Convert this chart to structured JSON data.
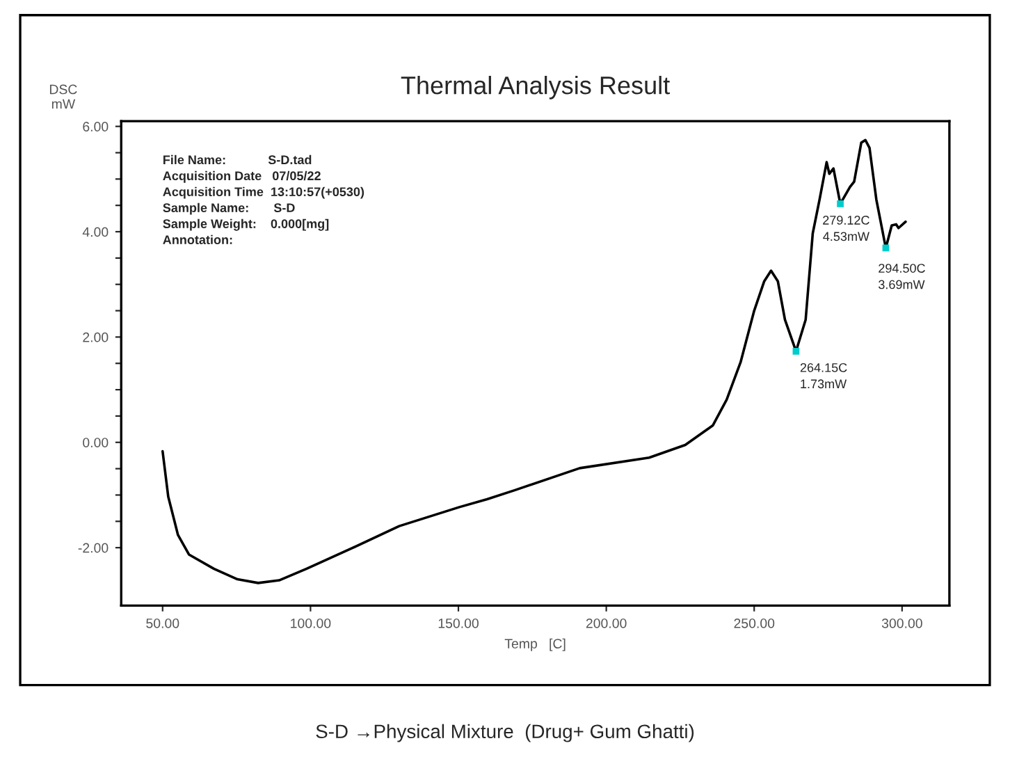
{
  "chart_data": {
    "type": "line",
    "title": "Thermal Analysis Result",
    "xlabel": "Temp   [C]",
    "ylabel": "DSC\nmW",
    "x": [
      50,
      51.9,
      55.2,
      58.9,
      67.3,
      75.3,
      82.3,
      89.4,
      98.7,
      114,
      130,
      150.3,
      159.7,
      169,
      191,
      214.5,
      226.7,
      236,
      240.7,
      245.4,
      250,
      253.4,
      255.7,
      258,
      260.4,
      264.15,
      267.4,
      269.8,
      272.1,
      274.5,
      275.4,
      276.8,
      279.12,
      282.4,
      283.8,
      286.2,
      287.6,
      289,
      291.3,
      294.5,
      296.5,
      298,
      298.8,
      301.2
    ],
    "series": [
      {
        "color": "#000000",
        "values": [
          -0.17,
          -1.03,
          -1.76,
          -2.13,
          -2.4,
          -2.6,
          -2.67,
          -2.62,
          -2.4,
          -2.01,
          -1.59,
          -1.23,
          -1.08,
          -0.91,
          -0.49,
          -0.29,
          -0.05,
          0.32,
          0.81,
          1.52,
          2.5,
          3.06,
          3.26,
          3.06,
          2.33,
          1.73,
          2.33,
          3.97,
          4.61,
          5.32,
          5.1,
          5.2,
          4.53,
          4.85,
          4.95,
          5.69,
          5.74,
          5.59,
          4.61,
          3.69,
          4.12,
          4.14,
          4.07,
          4.19
        ]
      }
    ],
    "xlim": [
      36,
      316
    ],
    "ylim": [
      -3.1,
      6.1
    ],
    "xticks": [
      {
        "value": 50,
        "label": "50.00"
      },
      {
        "value": 100,
        "label": "100.00"
      },
      {
        "value": 150,
        "label": "150.00"
      },
      {
        "value": 200,
        "label": "200.00"
      },
      {
        "value": 250,
        "label": "250.00"
      },
      {
        "value": 300,
        "label": "300.00"
      }
    ],
    "yticks": [
      {
        "value": -2,
        "label": "-2.00"
      },
      {
        "value": -1.5,
        "label": null
      },
      {
        "value": -1,
        "label": null
      },
      {
        "value": -0.5,
        "label": null
      },
      {
        "value": 0,
        "label": "0.00"
      },
      {
        "value": 0.5,
        "label": null
      },
      {
        "value": 1,
        "label": null
      },
      {
        "value": 1.5,
        "label": null
      },
      {
        "value": 2,
        "label": "2.00"
      },
      {
        "value": 2.5,
        "label": null
      },
      {
        "value": 3,
        "label": null
      },
      {
        "value": 3.5,
        "label": null
      },
      {
        "value": 4,
        "label": "4.00"
      },
      {
        "value": 4.5,
        "label": null
      },
      {
        "value": 5,
        "label": null
      },
      {
        "value": 5.5,
        "label": null
      },
      {
        "value": 6,
        "label": "6.00"
      }
    ],
    "grid": false,
    "legend": false,
    "marker": "none",
    "line_style": "solid",
    "annotations": [
      "File Name:            S-D.tad",
      "Acquisition Date   07/05/22",
      "Acquisition Time  13:10:57(+0530)",
      "Sample Name:       S-D",
      "Sample Weight:    0.000[mg]",
      "Annotation:",
      {
        "text": "264.15C\n1.73mW",
        "x": 264.15,
        "y": 1.73
      },
      {
        "text": "279.12C\n4.53mW",
        "x": 279.12,
        "y": 4.53
      },
      {
        "text": "294.50C\n3.69mW",
        "x": 294.5,
        "y": 3.69
      },
      "S-D →Physical Mixture  (Drug+ Gum Ghatti)"
    ]
  }
}
